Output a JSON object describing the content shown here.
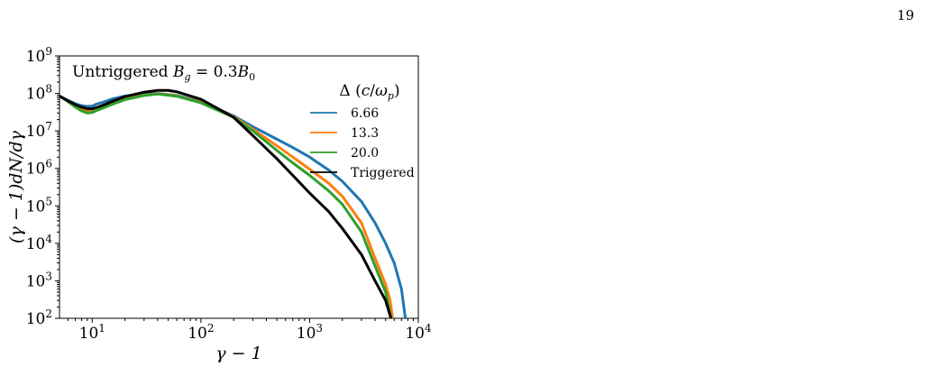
{
  "page_number": "19",
  "chart_data": {
    "type": "line",
    "title": "Untriggered B_g = 0.3B_0",
    "title_parts": {
      "lead": "Untriggered ",
      "b": "B",
      "g": "g",
      "eq": " = 0.3",
      "b0": "B",
      "zero": "0"
    },
    "xlabel": "γ − 1",
    "ylabel": "(γ − 1)dN/dγ",
    "xscale": "log",
    "yscale": "log",
    "xlim": [
      5,
      10000
    ],
    "ylim": [
      100,
      1000000000
    ],
    "x_ticks": [
      {
        "value": 10,
        "base": "10",
        "exp": "1"
      },
      {
        "value": 100,
        "base": "10",
        "exp": "2"
      },
      {
        "value": 1000,
        "base": "10",
        "exp": "3"
      },
      {
        "value": 10000,
        "base": "10",
        "exp": "4"
      }
    ],
    "y_ticks": [
      {
        "value": 100,
        "base": "10",
        "exp": "2"
      },
      {
        "value": 1000,
        "base": "10",
        "exp": "3"
      },
      {
        "value": 10000,
        "base": "10",
        "exp": "4"
      },
      {
        "value": 100000,
        "base": "10",
        "exp": "5"
      },
      {
        "value": 1000000,
        "base": "10",
        "exp": "6"
      },
      {
        "value": 10000000,
        "base": "10",
        "exp": "7"
      },
      {
        "value": 100000000,
        "base": "10",
        "exp": "8"
      },
      {
        "value": 1000000000,
        "base": "10",
        "exp": "9"
      }
    ],
    "legend": {
      "title": "Δ (c/ω_p)",
      "placement": "top-right"
    },
    "series": [
      {
        "name": "6.66",
        "color": "#1f77b4",
        "x": [
          5,
          6,
          7,
          8,
          9,
          10,
          11,
          13,
          15,
          20,
          30,
          40,
          60,
          100,
          200,
          300,
          500,
          700,
          1000,
          1500,
          2000,
          3000,
          4000,
          5000,
          6000,
          7000,
          7600
        ],
        "y": [
          85000000.0,
          65000000.0,
          53000000.0,
          47000000.0,
          45000000.0,
          46000000.0,
          52000000.0,
          60000000.0,
          70000000.0,
          85000000.0,
          98000000.0,
          100000000.0,
          88000000.0,
          60000000.0,
          25000000.0,
          13000000.0,
          6000000.0,
          3600000.0,
          2000000.0,
          900000.0,
          450000.0,
          130000.0,
          35000.0,
          10000.0,
          3000.0,
          600.0,
          100.0
        ]
      },
      {
        "name": "13.3",
        "color": "#ff7f0e",
        "x": [
          5,
          6,
          7,
          8,
          9,
          10,
          11,
          13,
          15,
          20,
          30,
          40,
          60,
          100,
          200,
          300,
          500,
          700,
          1000,
          1500,
          2000,
          3000,
          4000,
          5000,
          5500,
          5800
        ],
        "y": [
          85000000.0,
          62000000.0,
          46000000.0,
          38000000.0,
          34000000.0,
          35000000.0,
          39000000.0,
          46000000.0,
          54000000.0,
          72000000.0,
          90000000.0,
          98000000.0,
          86000000.0,
          58000000.0,
          24000000.0,
          11000000.0,
          4000000.0,
          2000000.0,
          950000.0,
          400000.0,
          180000.0,
          35000.0,
          4000.0,
          800.0,
          300.0,
          100.0
        ]
      },
      {
        "name": "20.0",
        "color": "#2ca02c",
        "x": [
          5,
          6,
          7,
          8,
          9,
          10,
          11,
          13,
          15,
          20,
          30,
          40,
          60,
          100,
          200,
          300,
          500,
          700,
          1000,
          1500,
          2000,
          3000,
          4000,
          5000,
          5600
        ],
        "y": [
          85000000.0,
          60000000.0,
          43000000.0,
          34000000.0,
          30000000.0,
          31000000.0,
          35000000.0,
          42000000.0,
          50000000.0,
          68000000.0,
          88000000.0,
          96000000.0,
          84000000.0,
          56000000.0,
          23000000.0,
          10000000.0,
          3000000.0,
          1400000.0,
          650000.0,
          250000.0,
          110000.0,
          20000.0,
          2500.0,
          500.0,
          100.0
        ]
      },
      {
        "name": "Triggered",
        "color": "#000000",
        "x": [
          5,
          6,
          7,
          8,
          9,
          10,
          11,
          13,
          15,
          20,
          30,
          40,
          50,
          60,
          100,
          200,
          300,
          500,
          700,
          1000,
          1500,
          2000,
          3000,
          4000,
          5000,
          5600
        ],
        "y": [
          85000000.0,
          63000000.0,
          50000000.0,
          43000000.0,
          39000000.0,
          39000000.0,
          42000000.0,
          50000000.0,
          60000000.0,
          82000000.0,
          108000000.0,
          120000000.0,
          120000000.0,
          110000000.0,
          70000000.0,
          23000000.0,
          7500000.0,
          1800000.0,
          650000.0,
          220000.0,
          70000.0,
          25000.0,
          5000.0,
          1000.0,
          300.0,
          100.0
        ]
      }
    ]
  }
}
